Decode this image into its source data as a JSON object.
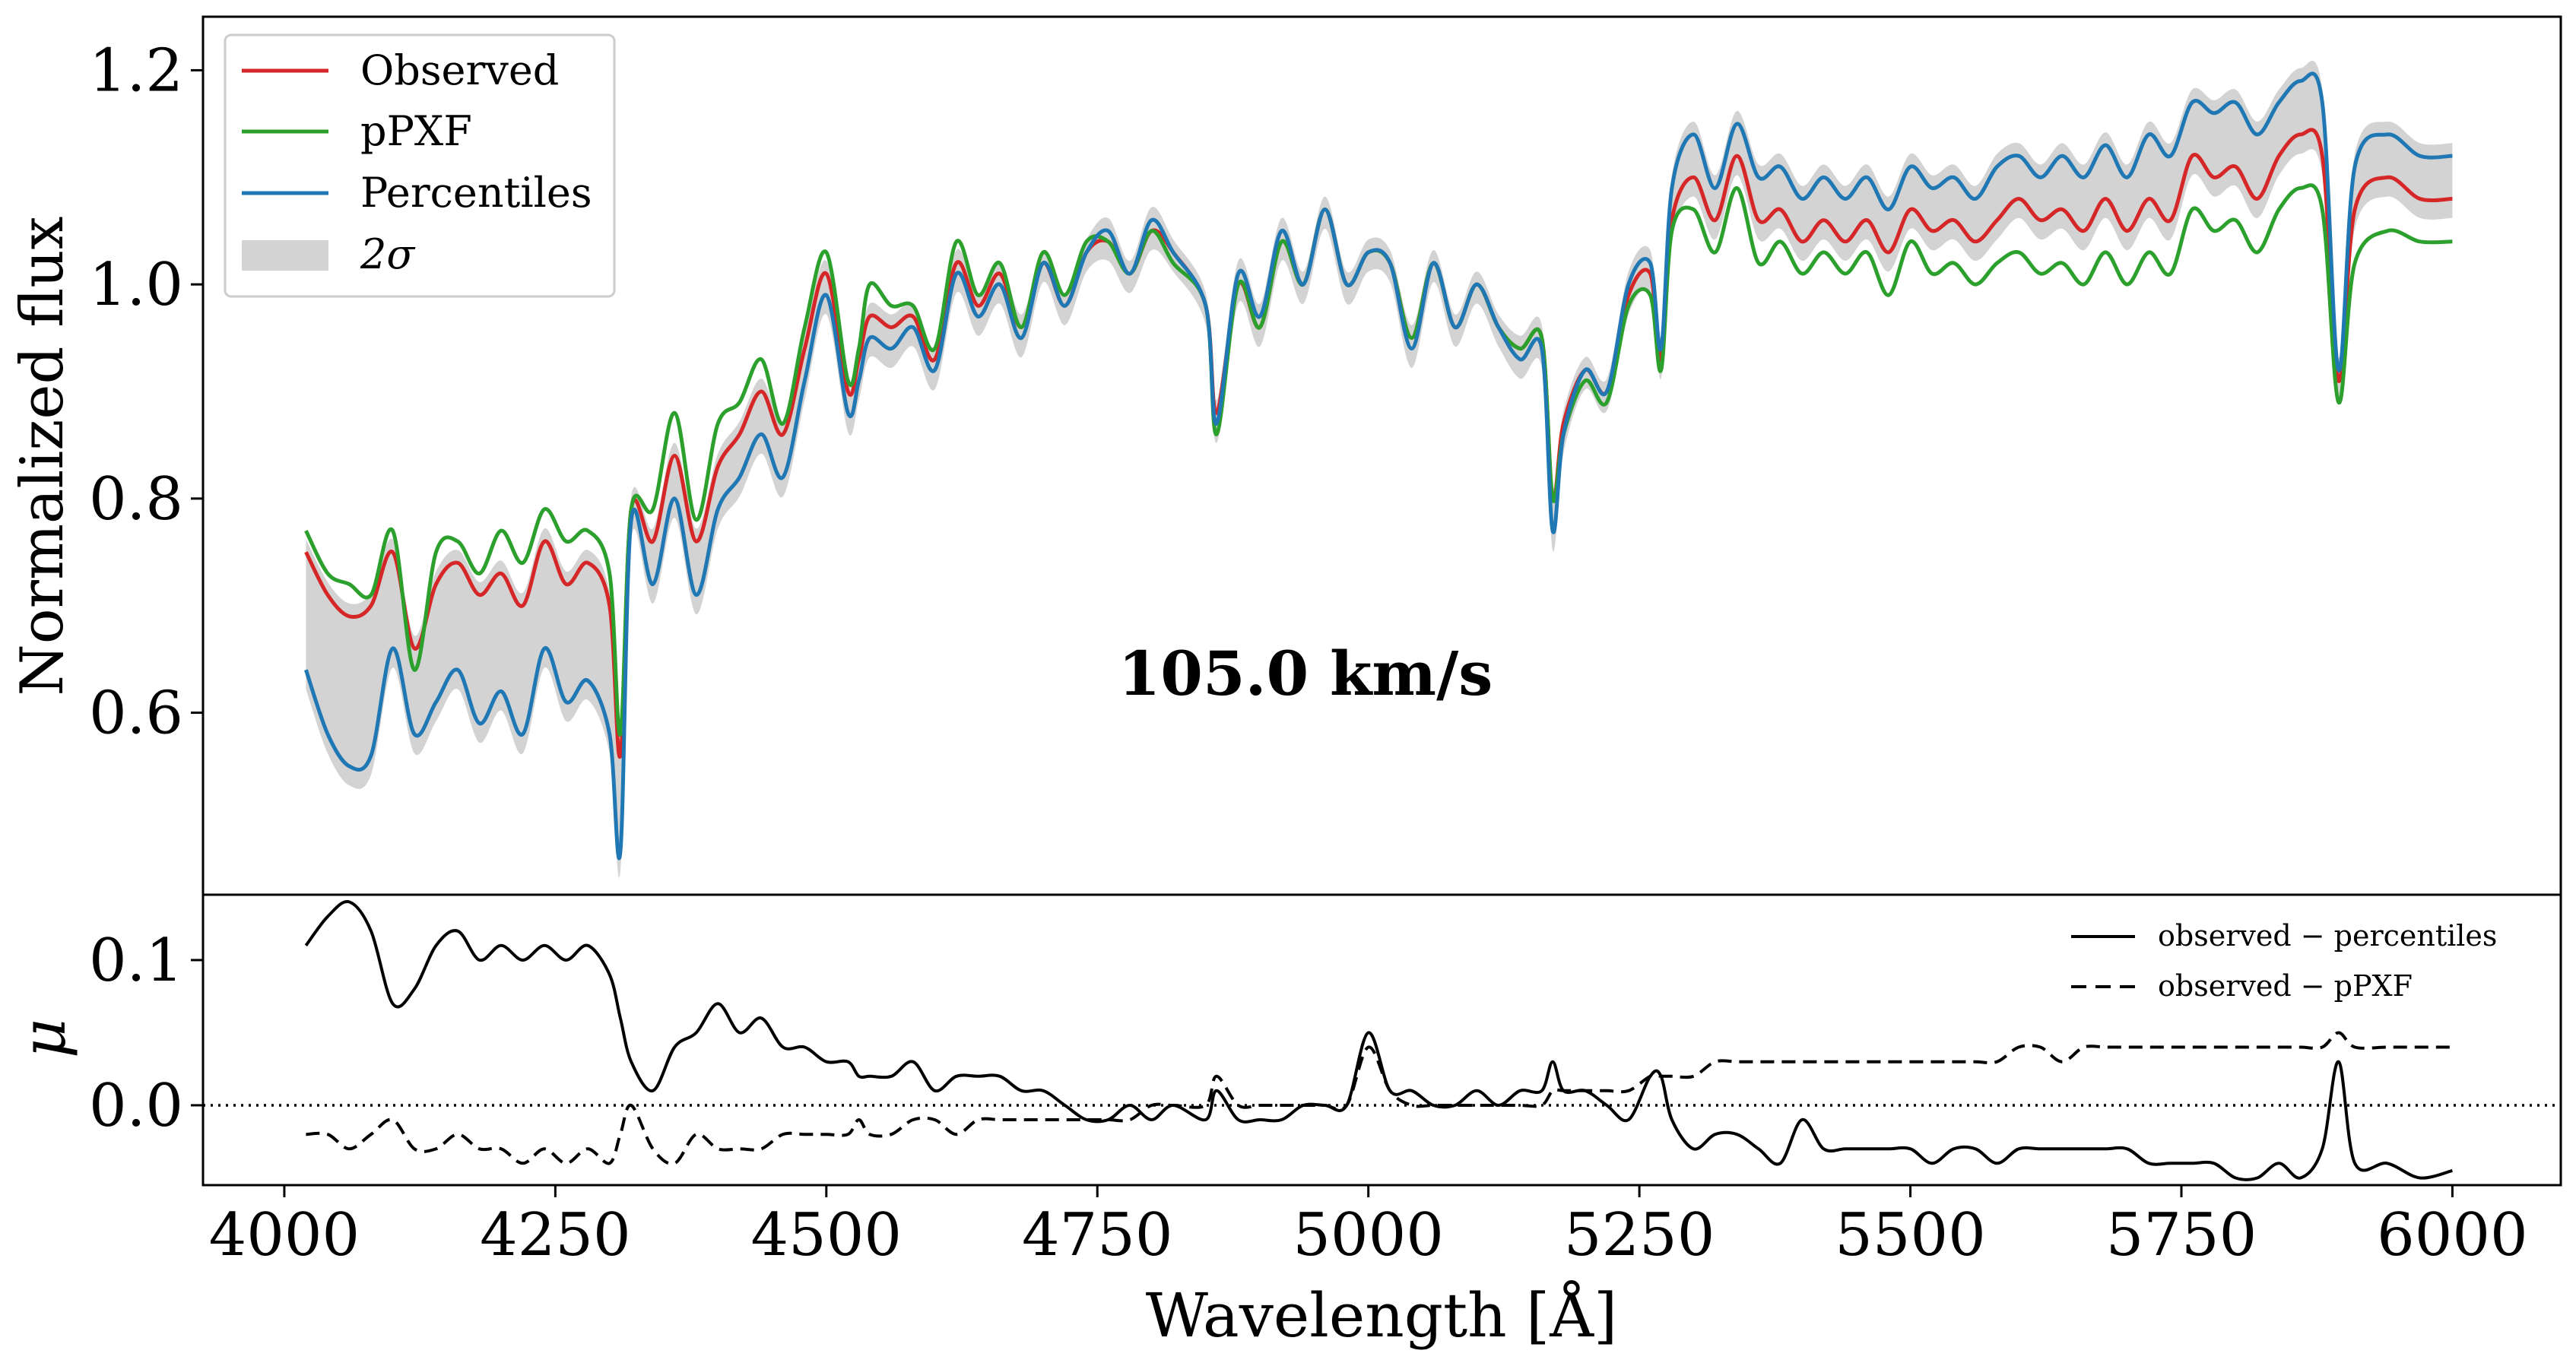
{
  "chart_data": [
    {
      "type": "line",
      "panel": "top",
      "ylabel": "Normalized flux",
      "xlim": [
        3925,
        6100
      ],
      "ylim": [
        0.43,
        1.25
      ],
      "yticks": [
        0.6,
        0.8,
        1.0,
        1.2
      ],
      "ytick_labels": [
        "0.6",
        "0.8",
        "1.0",
        "1.2"
      ],
      "annotation": "105.0 km/s",
      "legend_position": "top-left",
      "legend": [
        {
          "label": "Observed",
          "color": "#d62728",
          "kind": "line"
        },
        {
          "label": "pPXF",
          "color": "#2ca02c",
          "kind": "line"
        },
        {
          "label": "Percentiles",
          "color": "#1f77b4",
          "kind": "line"
        },
        {
          "label": "2σ",
          "color": "#d3d3d3",
          "kind": "band"
        }
      ],
      "x": [
        4020,
        4040,
        4060,
        4080,
        4100,
        4120,
        4140,
        4160,
        4180,
        4200,
        4220,
        4240,
        4260,
        4280,
        4300,
        4310,
        4320,
        4340,
        4360,
        4380,
        4400,
        4420,
        4440,
        4460,
        4480,
        4500,
        4520,
        4530,
        4540,
        4560,
        4580,
        4600,
        4620,
        4640,
        4660,
        4680,
        4700,
        4720,
        4740,
        4760,
        4780,
        4800,
        4820,
        4850,
        4860,
        4880,
        4900,
        4920,
        4940,
        4960,
        4980,
        5000,
        5020,
        5040,
        5060,
        5080,
        5100,
        5120,
        5140,
        5160,
        5170,
        5180,
        5200,
        5220,
        5240,
        5260,
        5270,
        5280,
        5300,
        5320,
        5340,
        5360,
        5380,
        5400,
        5420,
        5440,
        5460,
        5480,
        5500,
        5520,
        5540,
        5560,
        5580,
        5600,
        5620,
        5640,
        5660,
        5680,
        5700,
        5720,
        5740,
        5760,
        5780,
        5800,
        5820,
        5840,
        5860,
        5880,
        5895,
        5910,
        5940,
        5970,
        6000
      ],
      "series": [
        {
          "name": "Observed",
          "color": "#d62728",
          "values": [
            0.75,
            0.71,
            0.69,
            0.7,
            0.75,
            0.66,
            0.72,
            0.74,
            0.71,
            0.73,
            0.7,
            0.76,
            0.72,
            0.74,
            0.7,
            0.56,
            0.79,
            0.76,
            0.84,
            0.76,
            0.83,
            0.86,
            0.9,
            0.86,
            0.94,
            1.01,
            0.9,
            0.93,
            0.97,
            0.96,
            0.97,
            0.93,
            1.02,
            0.98,
            1.01,
            0.96,
            1.02,
            0.98,
            1.03,
            1.04,
            1.01,
            1.05,
            1.03,
            0.98,
            0.88,
            1.0,
            0.96,
            1.04,
            1.0,
            1.07,
            1.0,
            1.03,
            1.02,
            0.95,
            1.02,
            0.96,
            1.0,
            0.96,
            0.94,
            0.95,
            0.8,
            0.87,
            0.92,
            0.9,
            0.99,
            1.01,
            0.93,
            1.06,
            1.1,
            1.06,
            1.12,
            1.06,
            1.07,
            1.04,
            1.06,
            1.04,
            1.06,
            1.03,
            1.07,
            1.05,
            1.06,
            1.04,
            1.06,
            1.08,
            1.06,
            1.07,
            1.05,
            1.08,
            1.05,
            1.08,
            1.06,
            1.12,
            1.1,
            1.11,
            1.08,
            1.12,
            1.14,
            1.12,
            0.91,
            1.07,
            1.1,
            1.08,
            1.08
          ]
        },
        {
          "name": "pPXF",
          "color": "#2ca02c",
          "values": [
            0.77,
            0.73,
            0.72,
            0.71,
            0.77,
            0.64,
            0.75,
            0.76,
            0.73,
            0.77,
            0.74,
            0.79,
            0.76,
            0.77,
            0.73,
            0.58,
            0.79,
            0.79,
            0.88,
            0.78,
            0.87,
            0.89,
            0.93,
            0.87,
            0.96,
            1.03,
            0.91,
            0.94,
            1.0,
            0.98,
            0.98,
            0.94,
            1.04,
            0.99,
            1.02,
            0.96,
            1.03,
            0.99,
            1.04,
            1.04,
            1.01,
            1.05,
            1.02,
            0.98,
            0.86,
            1.0,
            0.96,
            1.04,
            1.0,
            1.07,
            1.0,
            1.03,
            1.02,
            0.95,
            1.02,
            0.96,
            1.0,
            0.96,
            0.94,
            0.95,
            0.8,
            0.86,
            0.91,
            0.89,
            0.98,
            0.99,
            0.92,
            1.05,
            1.07,
            1.03,
            1.09,
            1.02,
            1.04,
            1.01,
            1.03,
            1.01,
            1.03,
            0.99,
            1.04,
            1.01,
            1.02,
            1.0,
            1.02,
            1.03,
            1.01,
            1.02,
            1.0,
            1.03,
            1.0,
            1.03,
            1.01,
            1.07,
            1.05,
            1.06,
            1.03,
            1.07,
            1.09,
            1.07,
            0.89,
            1.02,
            1.05,
            1.04,
            1.04
          ]
        },
        {
          "name": "Percentiles",
          "color": "#1f77b4",
          "values": [
            0.64,
            0.58,
            0.55,
            0.56,
            0.66,
            0.58,
            0.61,
            0.64,
            0.59,
            0.62,
            0.58,
            0.66,
            0.61,
            0.63,
            0.58,
            0.47,
            0.78,
            0.72,
            0.8,
            0.71,
            0.79,
            0.82,
            0.86,
            0.82,
            0.91,
            0.99,
            0.88,
            0.91,
            0.95,
            0.94,
            0.96,
            0.92,
            1.01,
            0.97,
            1.0,
            0.95,
            1.02,
            0.98,
            1.03,
            1.05,
            1.01,
            1.06,
            1.03,
            0.98,
            0.87,
            1.01,
            0.97,
            1.05,
            1.0,
            1.07,
            1.0,
            1.03,
            1.02,
            0.94,
            1.02,
            0.96,
            1.0,
            0.96,
            0.93,
            0.94,
            0.77,
            0.86,
            0.92,
            0.9,
            1.0,
            1.02,
            0.94,
            1.09,
            1.14,
            1.09,
            1.15,
            1.1,
            1.11,
            1.08,
            1.1,
            1.08,
            1.1,
            1.07,
            1.11,
            1.09,
            1.1,
            1.08,
            1.11,
            1.12,
            1.1,
            1.12,
            1.1,
            1.13,
            1.1,
            1.14,
            1.12,
            1.17,
            1.16,
            1.17,
            1.14,
            1.17,
            1.19,
            1.17,
            0.92,
            1.11,
            1.14,
            1.12,
            1.12
          ]
        }
      ]
    },
    {
      "type": "line",
      "panel": "bottom",
      "xlabel": "Wavelength [Å]",
      "ylabel": "μ",
      "xlim": [
        3925,
        6100
      ],
      "ylim": [
        -0.055,
        0.145
      ],
      "xticks": [
        4000,
        4250,
        4500,
        4750,
        5000,
        5250,
        5500,
        5750,
        6000
      ],
      "xtick_labels": [
        "4000",
        "4250",
        "4500",
        "4750",
        "5000",
        "5250",
        "5500",
        "5750",
        "6000"
      ],
      "yticks": [
        0.0,
        0.1
      ],
      "ytick_labels": [
        "0.0",
        "0.1"
      ],
      "reference_line": 0.0,
      "legend_position": "top-right",
      "legend": [
        {
          "label": "observed − percentiles",
          "style": "solid"
        },
        {
          "label": "observed − pPXF",
          "style": "dashed"
        }
      ],
      "x": [
        4020,
        4040,
        4060,
        4080,
        4100,
        4120,
        4140,
        4160,
        4180,
        4200,
        4220,
        4240,
        4260,
        4280,
        4300,
        4310,
        4320,
        4340,
        4360,
        4380,
        4400,
        4420,
        4440,
        4460,
        4480,
        4500,
        4520,
        4530,
        4540,
        4560,
        4580,
        4600,
        4620,
        4640,
        4660,
        4680,
        4700,
        4720,
        4740,
        4760,
        4780,
        4800,
        4820,
        4850,
        4860,
        4880,
        4900,
        4920,
        4940,
        4960,
        4980,
        5000,
        5020,
        5040,
        5060,
        5080,
        5100,
        5120,
        5140,
        5160,
        5170,
        5180,
        5200,
        5220,
        5240,
        5260,
        5270,
        5280,
        5300,
        5320,
        5340,
        5360,
        5380,
        5400,
        5420,
        5440,
        5460,
        5480,
        5500,
        5520,
        5540,
        5560,
        5580,
        5600,
        5620,
        5640,
        5660,
        5680,
        5700,
        5720,
        5740,
        5760,
        5780,
        5800,
        5820,
        5840,
        5860,
        5880,
        5895,
        5910,
        5940,
        5970,
        6000
      ],
      "series": [
        {
          "name": "observed − percentiles",
          "style": "solid",
          "color": "#000000",
          "values": [
            0.11,
            0.13,
            0.14,
            0.12,
            0.07,
            0.08,
            0.11,
            0.12,
            0.1,
            0.11,
            0.1,
            0.11,
            0.1,
            0.11,
            0.09,
            0.06,
            0.03,
            0.01,
            0.04,
            0.05,
            0.07,
            0.05,
            0.06,
            0.04,
            0.04,
            0.03,
            0.03,
            0.02,
            0.02,
            0.02,
            0.03,
            0.01,
            0.02,
            0.02,
            0.02,
            0.01,
            0.01,
            0.0,
            -0.01,
            -0.01,
            0.0,
            -0.01,
            0.0,
            -0.01,
            0.01,
            -0.01,
            -0.01,
            -0.01,
            0.0,
            0.0,
            0.0,
            0.05,
            0.01,
            0.01,
            0.0,
            0.0,
            0.01,
            0.0,
            0.01,
            0.01,
            0.03,
            0.01,
            0.01,
            0.0,
            -0.01,
            0.02,
            0.02,
            -0.01,
            -0.03,
            -0.02,
            -0.02,
            -0.03,
            -0.04,
            -0.01,
            -0.03,
            -0.03,
            -0.03,
            -0.03,
            -0.03,
            -0.04,
            -0.03,
            -0.03,
            -0.04,
            -0.03,
            -0.03,
            -0.03,
            -0.03,
            -0.03,
            -0.03,
            -0.04,
            -0.04,
            -0.04,
            -0.04,
            -0.05,
            -0.05,
            -0.04,
            -0.05,
            -0.03,
            0.03,
            -0.04,
            -0.04,
            -0.05,
            -0.045
          ]
        },
        {
          "name": "observed − pPXF",
          "style": "dashed",
          "color": "#000000",
          "values": [
            -0.02,
            -0.02,
            -0.03,
            -0.02,
            -0.01,
            -0.03,
            -0.03,
            -0.02,
            -0.03,
            -0.03,
            -0.04,
            -0.03,
            -0.04,
            -0.03,
            -0.04,
            -0.02,
            0.0,
            -0.03,
            -0.04,
            -0.02,
            -0.03,
            -0.03,
            -0.03,
            -0.02,
            -0.02,
            -0.02,
            -0.02,
            -0.01,
            -0.02,
            -0.02,
            -0.01,
            -0.01,
            -0.02,
            -0.01,
            -0.01,
            -0.01,
            -0.01,
            -0.01,
            -0.01,
            -0.01,
            -0.01,
            0.0,
            0.0,
            0.0,
            0.02,
            0.0,
            0.0,
            0.0,
            0.0,
            0.0,
            0.0,
            0.04,
            0.01,
            0.0,
            0.0,
            0.0,
            0.0,
            0.0,
            0.0,
            0.0,
            0.01,
            0.01,
            0.01,
            0.01,
            0.01,
            0.02,
            0.02,
            0.02,
            0.02,
            0.03,
            0.03,
            0.03,
            0.03,
            0.03,
            0.03,
            0.03,
            0.03,
            0.03,
            0.03,
            0.03,
            0.03,
            0.03,
            0.03,
            0.04,
            0.04,
            0.03,
            0.04,
            0.04,
            0.04,
            0.04,
            0.04,
            0.04,
            0.04,
            0.04,
            0.04,
            0.04,
            0.04,
            0.04,
            0.05,
            0.04,
            0.04,
            0.04,
            0.04
          ]
        }
      ]
    }
  ]
}
